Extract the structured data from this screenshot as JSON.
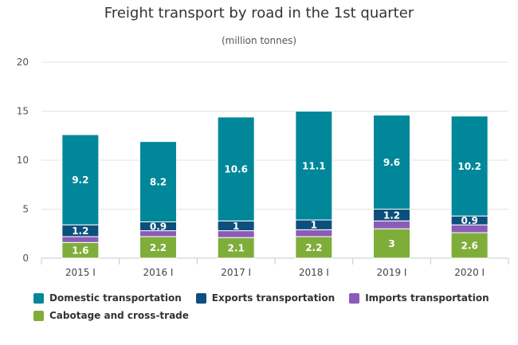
{
  "chart_data": {
    "type": "bar",
    "stacked": true,
    "title": "Freight transport by road in the 1st quarter",
    "subtitle": "(million tonnes)",
    "categories": [
      "2015 I",
      "2016 I",
      "2017 I",
      "2018 I",
      "2019 I",
      "2020 I"
    ],
    "series": [
      {
        "name": "Cabotage and cross-trade",
        "color": "#7fad3a",
        "values": [
          1.6,
          2.2,
          2.1,
          2.2,
          3,
          2.6
        ],
        "labels": [
          "1.6",
          "2.2",
          "2.1",
          "2.2",
          "3",
          "2.6"
        ]
      },
      {
        "name": "Imports transportation",
        "color": "#8b5bb8",
        "values": [
          0.6,
          0.6,
          0.7,
          0.7,
          0.8,
          0.8
        ],
        "labels": []
      },
      {
        "name": "Exports transportation",
        "color": "#0d4f7c",
        "values": [
          1.2,
          0.9,
          1,
          1,
          1.2,
          0.9
        ],
        "labels": [
          "1.2",
          "0.9",
          "1",
          "1",
          "1.2",
          "0.9"
        ]
      },
      {
        "name": "Domestic transportation",
        "color": "#00879a",
        "values": [
          9.2,
          8.2,
          10.6,
          11.1,
          9.6,
          10.2
        ],
        "labels": [
          "9.2",
          "8.2",
          "10.6",
          "11.1",
          "9.6",
          "10.2"
        ]
      }
    ],
    "legend_order": [
      "Domestic transportation",
      "Exports transportation",
      "Imports transportation",
      "Cabotage and cross-trade"
    ],
    "ylim": [
      0,
      20
    ],
    "yticks": [
      "0",
      "5",
      "10",
      "15",
      "20"
    ],
    "grid": true,
    "legend_position": "bottom-left"
  }
}
